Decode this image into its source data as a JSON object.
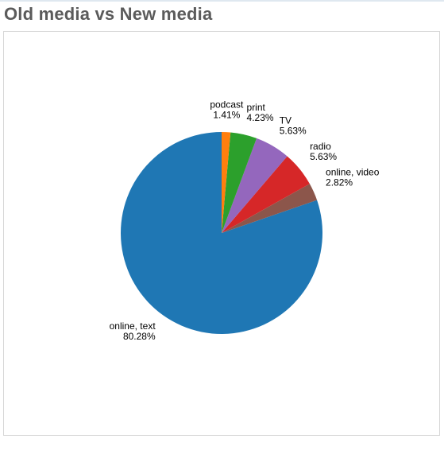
{
  "page": {
    "title": "Old media vs New media"
  },
  "chart_data": {
    "type": "pie",
    "title": "",
    "start_angle": "top",
    "direction": "counterclockwise",
    "slices": [
      {
        "label": "online, text",
        "value": 80.28,
        "pct_label": "80.28%",
        "color": "#1f77b4"
      },
      {
        "label": "online, video",
        "value": 2.82,
        "pct_label": "2.82%",
        "color": "#8c564b"
      },
      {
        "label": "radio",
        "value": 5.63,
        "pct_label": "5.63%",
        "color": "#d62728"
      },
      {
        "label": "TV",
        "value": 5.63,
        "pct_label": "5.63%",
        "color": "#9467bd"
      },
      {
        "label": "print",
        "value": 4.23,
        "pct_label": "4.23%",
        "color": "#2ca02c"
      },
      {
        "label": "podcast",
        "value": 1.41,
        "pct_label": "1.41%",
        "color": "#ff7f0e"
      }
    ]
  }
}
